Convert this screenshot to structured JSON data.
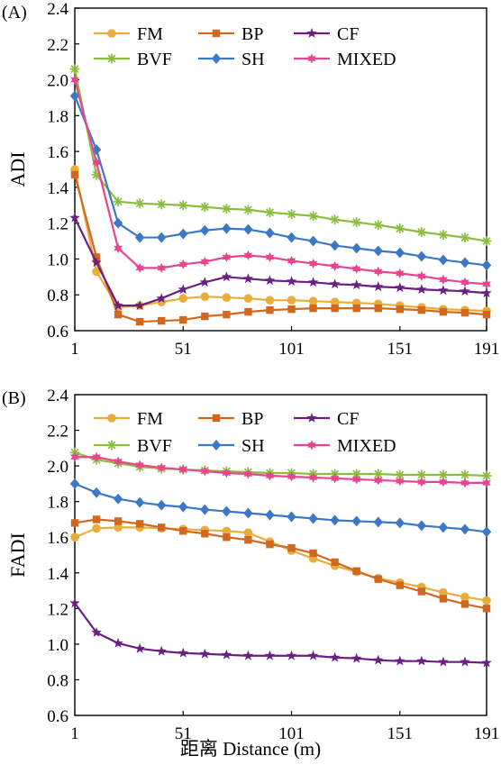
{
  "chart_data": [
    {
      "type": "line",
      "panel_label": "(A)",
      "ylabel": "ADI",
      "xlabel": "",
      "ylim": [
        0.6,
        2.4
      ],
      "yticks": [
        "0.6",
        "0.8",
        "1.0",
        "1.2",
        "1.4",
        "1.6",
        "1.8",
        "2.0",
        "2.2",
        "2.4"
      ],
      "xlim": [
        1,
        191
      ],
      "xticks": [
        "1",
        "51",
        "101",
        "151",
        "191"
      ],
      "x": [
        1,
        11,
        21,
        31,
        41,
        51,
        61,
        71,
        81,
        91,
        101,
        111,
        121,
        131,
        141,
        151,
        161,
        171,
        181,
        191
      ],
      "legend_position": "top",
      "series": [
        {
          "name": "FM",
          "color": "#e9ad3b",
          "marker": "circle",
          "values": [
            1.5,
            0.93,
            0.73,
            0.74,
            0.76,
            0.78,
            0.79,
            0.785,
            0.78,
            0.77,
            0.77,
            0.765,
            0.76,
            0.755,
            0.75,
            0.74,
            0.73,
            0.72,
            0.715,
            0.71
          ]
        },
        {
          "name": "BP",
          "color": "#d2681f",
          "marker": "square",
          "values": [
            1.47,
            1.01,
            0.69,
            0.65,
            0.655,
            0.66,
            0.68,
            0.69,
            0.705,
            0.715,
            0.72,
            0.725,
            0.725,
            0.725,
            0.725,
            0.72,
            0.715,
            0.705,
            0.7,
            0.69
          ]
        },
        {
          "name": "CF",
          "color": "#6a1f84",
          "marker": "star",
          "values": [
            1.23,
            0.98,
            0.74,
            0.74,
            0.78,
            0.83,
            0.87,
            0.9,
            0.89,
            0.88,
            0.875,
            0.87,
            0.86,
            0.855,
            0.845,
            0.84,
            0.83,
            0.825,
            0.82,
            0.81
          ]
        },
        {
          "name": "BVF",
          "color": "#8bbe3e",
          "marker": "asterisk",
          "values": [
            2.06,
            1.47,
            1.32,
            1.31,
            1.305,
            1.3,
            1.29,
            1.28,
            1.275,
            1.26,
            1.25,
            1.24,
            1.22,
            1.205,
            1.19,
            1.17,
            1.15,
            1.135,
            1.12,
            1.1
          ]
        },
        {
          "name": "SH",
          "color": "#3c78c8",
          "marker": "diamond",
          "values": [
            1.91,
            1.61,
            1.2,
            1.12,
            1.12,
            1.14,
            1.16,
            1.17,
            1.165,
            1.145,
            1.12,
            1.1,
            1.075,
            1.06,
            1.045,
            1.035,
            1.015,
            0.995,
            0.98,
            0.965
          ]
        },
        {
          "name": "MIXED",
          "color": "#e8458f",
          "marker": "star6",
          "values": [
            2.0,
            1.54,
            1.06,
            0.95,
            0.95,
            0.97,
            0.985,
            1.01,
            1.02,
            1.01,
            0.99,
            0.975,
            0.96,
            0.945,
            0.93,
            0.92,
            0.905,
            0.885,
            0.87,
            0.86
          ]
        }
      ]
    },
    {
      "type": "line",
      "panel_label": "(B)",
      "ylabel": "FADI",
      "xlabel": "距离 Distance (m)",
      "ylim": [
        0.6,
        2.4
      ],
      "yticks": [
        "0.6",
        "0.8",
        "1.0",
        "1.2",
        "1.4",
        "1.6",
        "1.8",
        "2.0",
        "2.2",
        "2.4"
      ],
      "xlim": [
        1,
        191
      ],
      "xticks": [
        "1",
        "51",
        "101",
        "151",
        "191"
      ],
      "x": [
        1,
        11,
        21,
        31,
        41,
        51,
        61,
        71,
        81,
        91,
        101,
        111,
        121,
        131,
        141,
        151,
        161,
        171,
        181,
        191
      ],
      "legend_position": "top",
      "series": [
        {
          "name": "FM",
          "color": "#e9ad3b",
          "marker": "circle",
          "values": [
            1.6,
            1.65,
            1.655,
            1.655,
            1.65,
            1.645,
            1.64,
            1.635,
            1.625,
            1.575,
            1.525,
            1.48,
            1.44,
            1.405,
            1.37,
            1.345,
            1.32,
            1.29,
            1.265,
            1.245
          ]
        },
        {
          "name": "BP",
          "color": "#d2681f",
          "marker": "square",
          "values": [
            1.68,
            1.7,
            1.69,
            1.675,
            1.655,
            1.635,
            1.62,
            1.6,
            1.585,
            1.56,
            1.54,
            1.51,
            1.46,
            1.41,
            1.365,
            1.33,
            1.295,
            1.255,
            1.225,
            1.2
          ]
        },
        {
          "name": "CF",
          "color": "#6a1f84",
          "marker": "star",
          "values": [
            1.23,
            1.065,
            1.005,
            0.975,
            0.96,
            0.95,
            0.945,
            0.94,
            0.935,
            0.935,
            0.935,
            0.935,
            0.925,
            0.92,
            0.91,
            0.905,
            0.905,
            0.9,
            0.9,
            0.895
          ]
        },
        {
          "name": "BVF",
          "color": "#8bbe3e",
          "marker": "asterisk",
          "values": [
            2.075,
            2.035,
            2.015,
            1.995,
            1.985,
            1.98,
            1.975,
            1.97,
            1.965,
            1.96,
            1.96,
            1.955,
            1.955,
            1.955,
            1.955,
            1.95,
            1.95,
            1.95,
            1.95,
            1.945
          ]
        },
        {
          "name": "SH",
          "color": "#3c78c8",
          "marker": "diamond",
          "values": [
            1.9,
            1.85,
            1.815,
            1.795,
            1.78,
            1.77,
            1.755,
            1.745,
            1.735,
            1.725,
            1.715,
            1.705,
            1.695,
            1.69,
            1.685,
            1.68,
            1.665,
            1.655,
            1.645,
            1.63
          ]
        },
        {
          "name": "MIXED",
          "color": "#e8458f",
          "marker": "star6",
          "values": [
            2.05,
            2.05,
            2.025,
            2.005,
            1.99,
            1.98,
            1.97,
            1.96,
            1.955,
            1.945,
            1.94,
            1.935,
            1.93,
            1.925,
            1.92,
            1.915,
            1.91,
            1.91,
            1.905,
            1.905
          ]
        }
      ]
    }
  ]
}
